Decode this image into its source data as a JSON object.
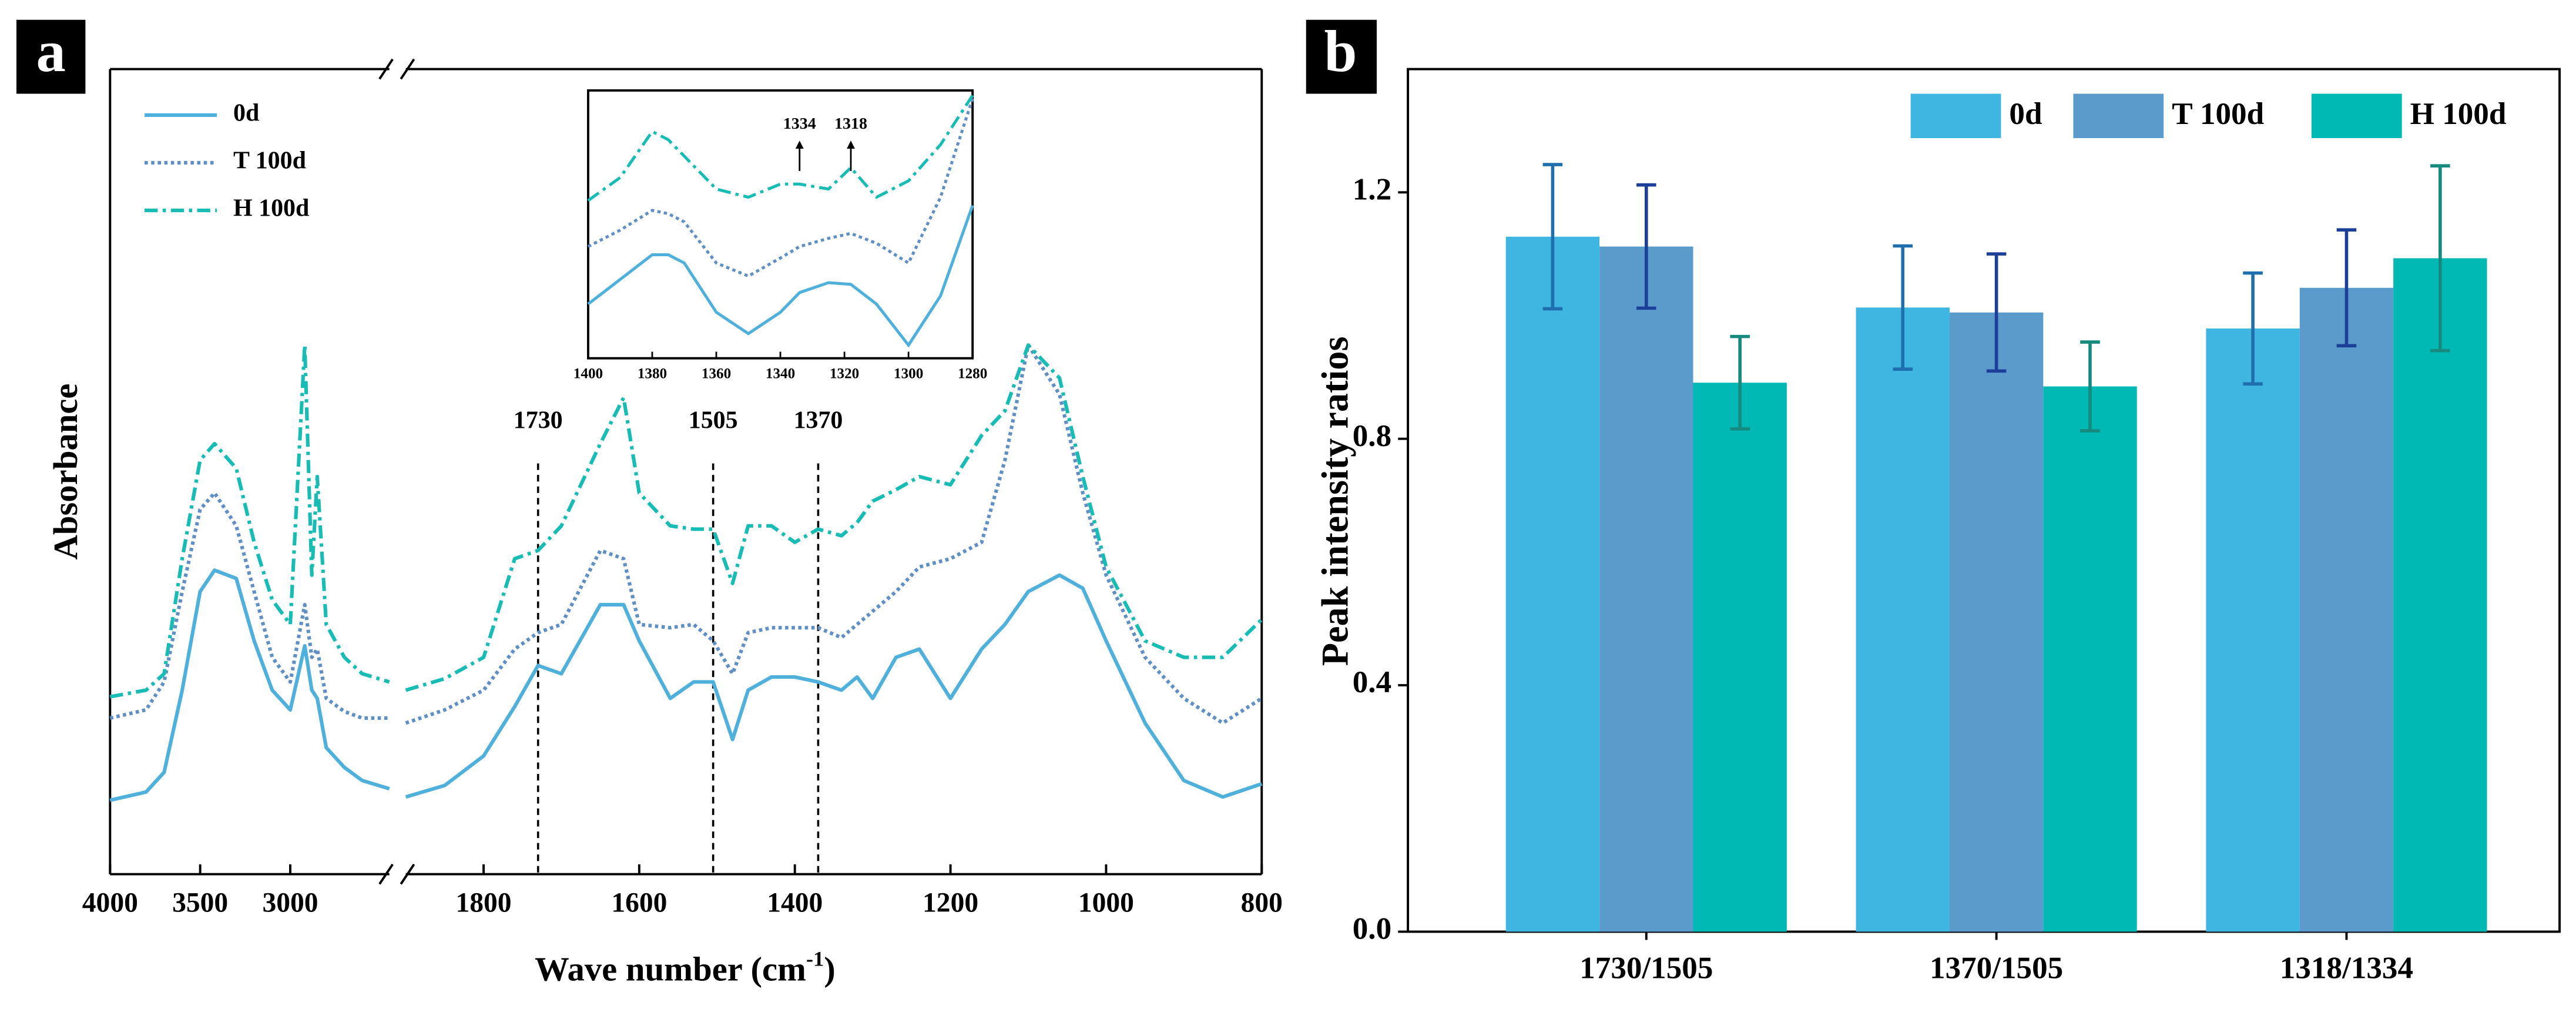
{
  "chart_data": [
    {
      "type": "line",
      "panel": "a",
      "ylabel": "Absorbance",
      "xlabel": [
        "Wave number (cm",
        "-1",
        ")"
      ],
      "x": [
        4000,
        3800,
        3700,
        3600,
        3500,
        3420,
        3300,
        3200,
        3100,
        3000,
        2920,
        2880,
        2850,
        2800,
        2700,
        2600,
        2450,
        1900,
        1850,
        1800,
        1760,
        1730,
        1700,
        1650,
        1620,
        1600,
        1560,
        1530,
        1505,
        1480,
        1460,
        1430,
        1400,
        1370,
        1340,
        1320,
        1300,
        1270,
        1240,
        1200,
        1160,
        1130,
        1100,
        1060,
        1030,
        1000,
        950,
        900,
        850,
        800
      ],
      "x_segments": [
        {
          "xlim": [
            4000,
            2450
          ],
          "xticks": [
            4000,
            3500,
            3000
          ]
        },
        {
          "xlim": [
            1900,
            800
          ],
          "xticks": [
            1800,
            1600,
            1400,
            1200,
            1000,
            800
          ]
        }
      ],
      "ylim": [
        0,
        4.9
      ],
      "legend": "upper left",
      "series": [
        {
          "name": "0d",
          "color": "#4fb0dc",
          "dash": "solid",
          "values": [
            0.45,
            0.5,
            0.62,
            1.12,
            1.72,
            1.85,
            1.8,
            1.42,
            1.12,
            1.0,
            1.39,
            1.12,
            1.07,
            0.77,
            0.65,
            0.57,
            0.52,
            0.47,
            0.54,
            0.72,
            1.02,
            1.27,
            1.22,
            1.64,
            1.64,
            1.42,
            1.07,
            1.17,
            1.17,
            0.82,
            1.12,
            1.2,
            1.2,
            1.17,
            1.12,
            1.2,
            1.07,
            1.32,
            1.37,
            1.07,
            1.37,
            1.52,
            1.72,
            1.82,
            1.74,
            1.42,
            0.92,
            0.57,
            0.47,
            0.55
          ]
        },
        {
          "name": "T 100d",
          "color": "#5f8fc4",
          "dash": "dot",
          "values": [
            0.95,
            1.0,
            1.17,
            1.72,
            2.22,
            2.32,
            2.12,
            1.72,
            1.32,
            1.17,
            1.64,
            1.32,
            1.37,
            1.07,
            0.99,
            0.95,
            0.95,
            0.92,
            1.0,
            1.12,
            1.37,
            1.47,
            1.52,
            1.97,
            1.92,
            1.52,
            1.5,
            1.52,
            1.42,
            1.22,
            1.47,
            1.5,
            1.5,
            1.5,
            1.44,
            1.52,
            1.6,
            1.72,
            1.87,
            1.92,
            2.02,
            2.52,
            3.22,
            2.92,
            2.32,
            1.82,
            1.32,
            1.07,
            0.92,
            1.07
          ]
        },
        {
          "name": "H 100d",
          "color": "#19bcb4",
          "dash": "dashdot",
          "values": [
            1.08,
            1.12,
            1.22,
            1.92,
            2.52,
            2.62,
            2.47,
            2.02,
            1.67,
            1.52,
            3.22,
            1.82,
            2.42,
            1.52,
            1.32,
            1.22,
            1.17,
            1.12,
            1.19,
            1.32,
            1.92,
            1.97,
            2.12,
            2.62,
            2.9,
            2.32,
            2.12,
            2.1,
            2.1,
            1.77,
            2.12,
            2.12,
            2.02,
            2.1,
            2.06,
            2.14,
            2.27,
            2.34,
            2.42,
            2.37,
            2.67,
            2.82,
            3.22,
            3.02,
            2.42,
            1.87,
            1.42,
            1.32,
            1.32,
            1.55
          ]
        }
      ],
      "reference_lines": [
        1730,
        1505,
        1370
      ],
      "inset": {
        "x": [
          1400,
          1390,
          1380,
          1375,
          1370,
          1360,
          1350,
          1340,
          1334,
          1325,
          1318,
          1310,
          1300,
          1290,
          1280
        ],
        "xlim": [
          1400,
          1280
        ],
        "xticks": [
          1400,
          1380,
          1360,
          1340,
          1320,
          1300,
          1280
        ],
        "ylim": [
          0,
          1.63
        ],
        "series": [
          {
            "values": [
              0.33,
              0.48,
              0.63,
              0.63,
              0.58,
              0.28,
              0.15,
              0.28,
              0.4,
              0.46,
              0.45,
              0.33,
              0.08,
              0.38,
              0.93
            ]
          },
          {
            "values": [
              0.68,
              0.78,
              0.9,
              0.88,
              0.83,
              0.58,
              0.5,
              0.61,
              0.68,
              0.73,
              0.76,
              0.7,
              0.58,
              0.98,
              1.58
            ]
          },
          {
            "values": [
              0.96,
              1.1,
              1.38,
              1.33,
              1.23,
              1.03,
              0.98,
              1.06,
              1.06,
              1.03,
              1.16,
              0.98,
              1.08,
              1.3,
              1.6
            ]
          }
        ],
        "annotations": [
          1334,
          1318
        ]
      }
    },
    {
      "type": "bar",
      "panel": "b",
      "ylabel": "Peak intensity ratios",
      "categories": [
        "1730/1505",
        "1370/1505",
        "1318/1334"
      ],
      "ylim": [
        0,
        1.4
      ],
      "yticks": [
        {
          "value": 0,
          "label": "0.0"
        },
        0.4,
        0.8,
        1.2
      ],
      "legend": "upper right",
      "series": [
        {
          "name": "0d",
          "color": "#3fb5e1",
          "error_color": "#1f6fae",
          "values": [
            1.128,
            1.013,
            0.979
          ],
          "errors": [
            0.117,
            0.1,
            0.09
          ]
        },
        {
          "name": "T 100d",
          "color": "#5a9bcb",
          "error_color": "#1c3f9a",
          "values": [
            1.112,
            1.005,
            1.045
          ],
          "errors": [
            0.1,
            0.095,
            0.094
          ]
        },
        {
          "name": "H 100d",
          "color": "#00b9b5",
          "error_color": "#168a7e",
          "values": [
            0.891,
            0.885,
            1.093
          ],
          "errors": [
            0.075,
            0.072,
            0.15
          ]
        }
      ]
    }
  ]
}
